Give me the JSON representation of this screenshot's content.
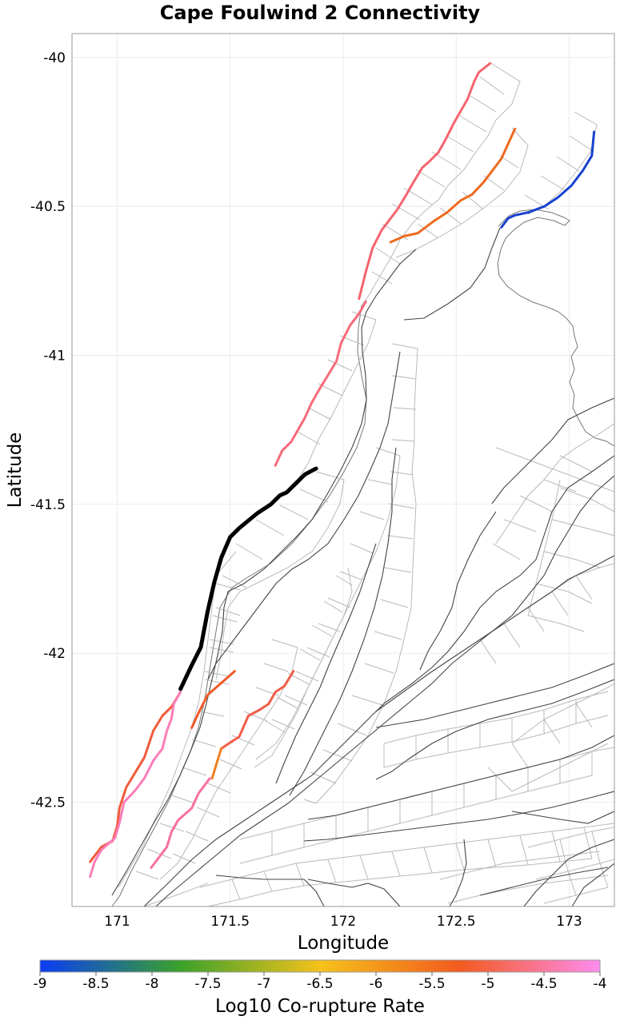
{
  "title": "Cape Foulwind 2 Connectivity",
  "map": {
    "xlabel": "Longitude",
    "ylabel": "Latitude",
    "xlim": [
      170.8,
      173.2
    ],
    "ylim": [
      -42.85,
      -39.92
    ],
    "x_ticks": [
      171,
      171.5,
      172,
      172.5,
      173
    ],
    "x_tick_labels": [
      "171",
      "171.5",
      "172",
      "172.5",
      "173"
    ],
    "y_ticks": [
      -40,
      -40.5,
      -41,
      -41.5,
      -42,
      -42.5
    ],
    "y_tick_labels": [
      "-40",
      "-40.5",
      "-41",
      "-41.5",
      "-42",
      "-42.5"
    ],
    "grid": true
  },
  "selected_fault": {
    "name": "Cape Foulwind 2",
    "color": "#000000",
    "trace": [
      [
        171.88,
        -41.38
      ],
      [
        171.83,
        -41.4
      ],
      [
        171.79,
        -41.43
      ],
      [
        171.75,
        -41.46
      ],
      [
        171.72,
        -41.47
      ],
      [
        171.68,
        -41.5
      ],
      [
        171.62,
        -41.53
      ],
      [
        171.54,
        -41.58
      ],
      [
        171.5,
        -41.61
      ],
      [
        171.46,
        -41.68
      ],
      [
        171.43,
        -41.76
      ],
      [
        171.4,
        -41.86
      ],
      [
        171.37,
        -41.98
      ],
      [
        171.33,
        -42.04
      ],
      [
        171.28,
        -42.12
      ]
    ]
  },
  "connected_faults": [
    {
      "log_rate": -4.55,
      "color": "#f5646e",
      "trace": [
        [
          172.65,
          -40.02
        ],
        [
          172.6,
          -40.05
        ],
        [
          172.58,
          -40.08
        ],
        [
          172.55,
          -40.14
        ],
        [
          172.52,
          -40.18
        ],
        [
          172.49,
          -40.22
        ],
        [
          172.45,
          -40.28
        ],
        [
          172.42,
          -40.32
        ],
        [
          172.38,
          -40.35
        ],
        [
          172.35,
          -40.37
        ],
        [
          172.31,
          -40.42
        ],
        [
          172.28,
          -40.46
        ],
        [
          172.24,
          -40.51
        ],
        [
          172.2,
          -40.55
        ],
        [
          172.17,
          -40.58
        ],
        [
          172.13,
          -40.64
        ],
        [
          172.1,
          -40.72
        ],
        [
          172.07,
          -40.81
        ]
      ]
    },
    {
      "log_rate": -4.45,
      "color": "#f76b7a",
      "trace": [
        [
          172.1,
          -40.82
        ],
        [
          172.07,
          -40.86
        ],
        [
          172.03,
          -40.9
        ],
        [
          171.99,
          -40.96
        ],
        [
          171.97,
          -41.02
        ],
        [
          171.93,
          -41.07
        ],
        [
          171.89,
          -41.12
        ],
        [
          171.86,
          -41.16
        ],
        [
          171.83,
          -41.21
        ],
        [
          171.8,
          -41.25
        ],
        [
          171.77,
          -41.29
        ],
        [
          171.73,
          -41.32
        ],
        [
          171.7,
          -41.37
        ]
      ]
    },
    {
      "log_rate": -5.2,
      "color": "#ed6a1e",
      "trace": [
        [
          172.76,
          -40.24
        ],
        [
          172.73,
          -40.29
        ],
        [
          172.7,
          -40.34
        ],
        [
          172.66,
          -40.38
        ],
        [
          172.62,
          -40.42
        ],
        [
          172.57,
          -40.46
        ],
        [
          172.52,
          -40.48
        ],
        [
          172.46,
          -40.52
        ],
        [
          172.4,
          -40.55
        ],
        [
          172.33,
          -40.59
        ],
        [
          172.27,
          -40.6
        ],
        [
          172.21,
          -40.62
        ]
      ]
    },
    {
      "log_rate": -8.8,
      "color": "#1842d0",
      "trace": [
        [
          173.11,
          -40.25
        ],
        [
          173.1,
          -40.33
        ],
        [
          173.06,
          -40.38
        ],
        [
          173.01,
          -40.43
        ],
        [
          172.95,
          -40.47
        ],
        [
          172.89,
          -40.5
        ],
        [
          172.82,
          -40.52
        ],
        [
          172.76,
          -40.53
        ],
        [
          172.73,
          -40.54
        ],
        [
          172.7,
          -40.57
        ]
      ]
    },
    {
      "log_rate": -4.85,
      "color": "#f05b3c",
      "trace": [
        [
          171.28,
          -42.13
        ],
        [
          171.24,
          -42.18
        ],
        [
          171.2,
          -42.21
        ],
        [
          171.16,
          -42.26
        ],
        [
          171.12,
          -42.35
        ],
        [
          171.08,
          -42.4
        ],
        [
          171.04,
          -42.45
        ],
        [
          171.01,
          -42.52
        ],
        [
          171.0,
          -42.58
        ],
        [
          170.98,
          -42.63
        ],
        [
          170.93,
          -42.65
        ],
        [
          170.88,
          -42.7
        ]
      ]
    },
    {
      "log_rate": -4.2,
      "color": "#fb7db8",
      "trace": [
        [
          171.28,
          -42.13
        ],
        [
          171.25,
          -42.17
        ],
        [
          171.24,
          -42.22
        ],
        [
          171.22,
          -42.26
        ],
        [
          171.2,
          -42.32
        ],
        [
          171.16,
          -42.36
        ],
        [
          171.12,
          -42.42
        ],
        [
          171.08,
          -42.46
        ],
        [
          171.03,
          -42.5
        ],
        [
          171.01,
          -42.57
        ],
        [
          170.99,
          -42.62
        ],
        [
          170.93,
          -42.66
        ],
        [
          170.9,
          -42.7
        ],
        [
          170.88,
          -42.75
        ]
      ]
    },
    {
      "log_rate": -5.05,
      "color": "#ef5a2a",
      "trace": [
        [
          171.52,
          -42.06
        ],
        [
          171.46,
          -42.1
        ],
        [
          171.4,
          -42.14
        ],
        [
          171.36,
          -42.2
        ],
        [
          171.33,
          -42.25
        ]
      ]
    },
    {
      "log_rate": -4.9,
      "color": "#f15d48",
      "trace": [
        [
          171.78,
          -42.06
        ],
        [
          171.74,
          -42.11
        ],
        [
          171.7,
          -42.13
        ],
        [
          171.67,
          -42.17
        ],
        [
          171.63,
          -42.19
        ],
        [
          171.58,
          -42.21
        ],
        [
          171.54,
          -42.28
        ],
        [
          171.5,
          -42.3
        ],
        [
          171.46,
          -42.32
        ]
      ]
    },
    {
      "log_rate": -5.3,
      "color": "#f08020",
      "trace": [
        [
          171.46,
          -42.32
        ],
        [
          171.44,
          -42.37
        ],
        [
          171.42,
          -42.42
        ]
      ]
    },
    {
      "log_rate": -4.3,
      "color": "#f86fa0",
      "trace": [
        [
          171.41,
          -42.42
        ],
        [
          171.36,
          -42.47
        ],
        [
          171.33,
          -42.52
        ],
        [
          171.27,
          -42.56
        ],
        [
          171.24,
          -42.6
        ],
        [
          171.22,
          -42.65
        ],
        [
          171.19,
          -42.68
        ],
        [
          171.15,
          -42.72
        ]
      ]
    }
  ],
  "colorbar": {
    "label": "Log10 Co-rupture Rate",
    "min": -9,
    "max": -4,
    "ticks": [
      -9,
      -8.5,
      -8,
      -7.5,
      -7,
      -6.5,
      -6,
      -5.5,
      -5,
      -4.5,
      -4
    ],
    "tick_labels": [
      "-9",
      "-8.5",
      "-8",
      "-7.5",
      "-7",
      "-6.5",
      "-6",
      "-5.5",
      "-5",
      "-4.5",
      "-4"
    ],
    "colors": [
      "#0b3cf5",
      "#3aa12a",
      "#f5c21a",
      "#f25a1e",
      "#ff8cf0"
    ]
  }
}
